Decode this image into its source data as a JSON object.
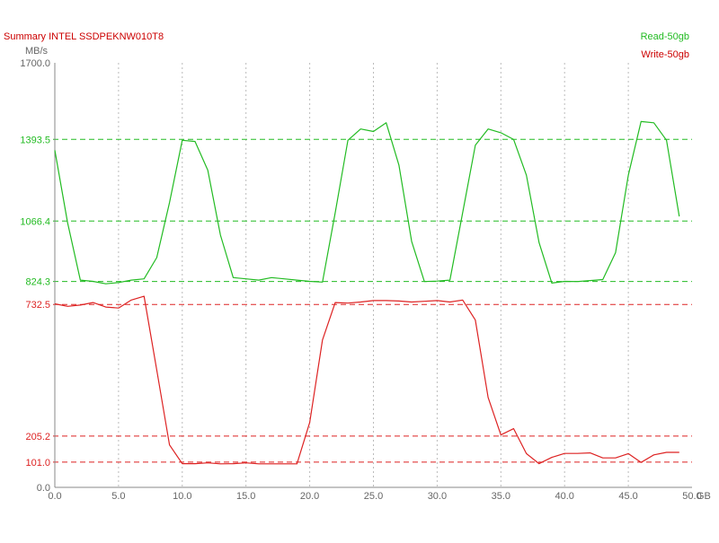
{
  "chart_data": {
    "type": "line",
    "title": "Summary  INTEL SSDPEKNW010T8",
    "ylabel": "MB/s",
    "xunit": "GB",
    "xlim": [
      0,
      50
    ],
    "ylim": [
      0,
      1700
    ],
    "xticks": [
      0,
      5,
      10,
      15,
      20,
      25,
      30,
      35,
      40,
      45,
      50
    ],
    "xtick_labels": [
      "0.0",
      "5.0",
      "10.0",
      "15.0",
      "20.0",
      "25.0",
      "30.0",
      "35.0",
      "40.0",
      "45.0",
      "50.0"
    ],
    "yticks": [
      0,
      1700
    ],
    "ytick_labels": [
      "0.0",
      "1700.0"
    ],
    "reference_lines": [
      {
        "value": 1393.5,
        "label": "1393.5",
        "series": "Read-50gb"
      },
      {
        "value": 1066.4,
        "label": "1066.4",
        "series": "Read-50gb"
      },
      {
        "value": 824.3,
        "label": "824.3",
        "series": "Read-50gb"
      },
      {
        "value": 732.5,
        "label": "732.5",
        "series": "Write-50gb"
      },
      {
        "value": 205.2,
        "label": "205.2",
        "series": "Write-50gb"
      },
      {
        "value": 101.0,
        "label": "101.0",
        "series": "Write-50gb"
      }
    ],
    "grid": true,
    "legend_position": "top-right",
    "x": [
      0,
      1,
      2,
      3,
      4,
      5,
      6,
      7,
      8,
      9,
      10,
      11,
      12,
      13,
      14,
      15,
      16,
      17,
      18,
      19,
      20,
      21,
      22,
      23,
      24,
      25,
      26,
      27,
      28,
      29,
      30,
      31,
      32,
      33,
      34,
      35,
      36,
      37,
      38,
      39,
      40,
      41,
      42,
      43,
      44,
      45,
      46,
      47,
      48,
      49
    ],
    "series": [
      {
        "name": "Read-50gb",
        "color": "#22bb22",
        "values": [
          1350,
          1060,
          830,
          825,
          815,
          820,
          830,
          835,
          920,
          1140,
          1390,
          1385,
          1270,
          1010,
          840,
          835,
          830,
          840,
          835,
          830,
          825,
          822,
          1100,
          1390,
          1435,
          1425,
          1460,
          1290,
          985,
          824,
          826,
          830,
          1100,
          1370,
          1435,
          1420,
          1393,
          1250,
          980,
          818,
          825,
          824,
          828,
          832,
          940,
          1250,
          1465,
          1460,
          1390,
          1085
        ]
      },
      {
        "name": "Write-50gb",
        "color": "#dd2222",
        "values": [
          735,
          725,
          730,
          740,
          722,
          718,
          750,
          765,
          470,
          170,
          95,
          95,
          98,
          94,
          95,
          98,
          94,
          94,
          94,
          94,
          260,
          590,
          740,
          738,
          742,
          748,
          748,
          746,
          742,
          745,
          748,
          742,
          750,
          670,
          360,
          210,
          235,
          135,
          95,
          120,
          136,
          136,
          138,
          118,
          118,
          135,
          100,
          130,
          140,
          140
        ]
      }
    ]
  }
}
